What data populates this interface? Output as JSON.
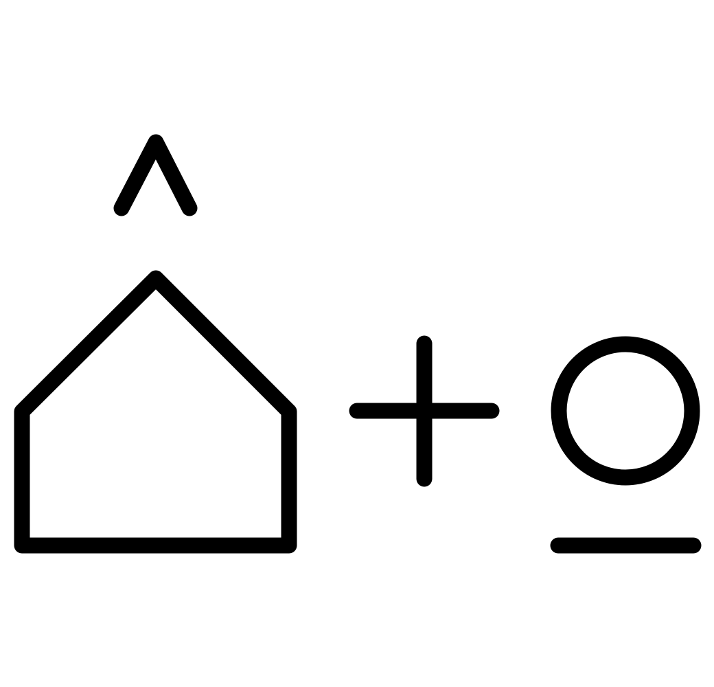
{
  "symbols": [
    {
      "name": "caret-icon"
    },
    {
      "name": "house-icon"
    },
    {
      "name": "plus-icon"
    },
    {
      "name": "circle-icon"
    },
    {
      "name": "underline-bar-icon"
    }
  ],
  "colors": {
    "stroke": "#000000",
    "background": "#ffffff"
  }
}
